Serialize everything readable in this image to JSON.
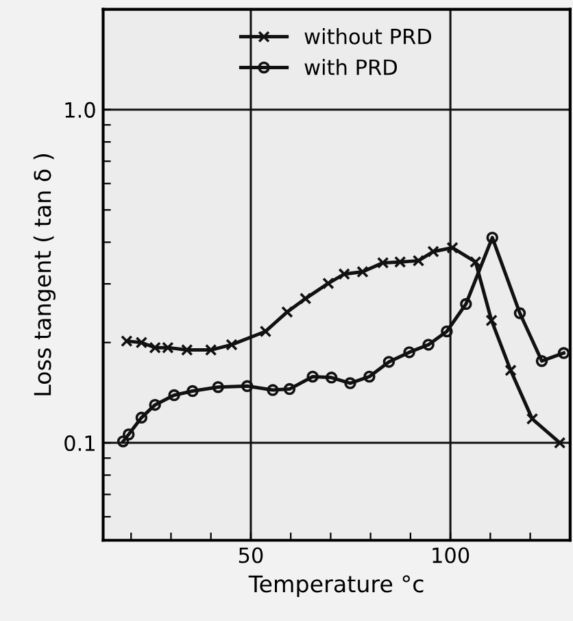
{
  "chart_data": {
    "type": "line",
    "xlabel": "Temperature °c",
    "ylabel": "Loss tangent ( tan δ )",
    "log": "y",
    "xlim": [
      13,
      130
    ],
    "ylim": [
      0.051,
      2.0
    ],
    "xticks": [
      {
        "value": 20,
        "label": null
      },
      {
        "value": 30,
        "label": null
      },
      {
        "value": 40,
        "label": null
      },
      50,
      {
        "value": 60,
        "label": null
      },
      {
        "value": 70,
        "label": null
      },
      {
        "value": 80,
        "label": null
      },
      {
        "value": 90,
        "label": null
      },
      100,
      {
        "value": 110,
        "label": null
      },
      {
        "value": 120,
        "label": null
      }
    ],
    "yticks": [
      {
        "value": 0.06,
        "label": null
      },
      {
        "value": 0.07,
        "label": null
      },
      {
        "value": 0.08,
        "label": null
      },
      {
        "value": 0.09,
        "label": null
      },
      0.1,
      {
        "value": 0.2,
        "label": null
      },
      {
        "value": 0.3,
        "label": null
      },
      {
        "value": 0.4,
        "label": null
      },
      {
        "value": 0.5,
        "label": null
      },
      {
        "value": 0.6,
        "label": null
      },
      {
        "value": 0.7,
        "label": null
      },
      {
        "value": 0.8,
        "label": null
      },
      {
        "value": 0.9,
        "label": null
      },
      {
        "value": 1.0,
        "label": "1.0"
      }
    ],
    "grid": true,
    "legend": "top",
    "line_style": "solid",
    "series": [
      {
        "name": "without PRD",
        "color": "#111111",
        "marker": "cross",
        "x": [
          18.9,
          22.6,
          26.0,
          29.2,
          34.0,
          40.0,
          45.2,
          53.7,
          59.1,
          63.7,
          69.4,
          73.4,
          78.0,
          83.1,
          87.4,
          92.0,
          95.7,
          100.5,
          106.3,
          110.3,
          115.1,
          120.5,
          127.4
        ],
        "values": [
          0.202,
          0.2,
          0.193,
          0.193,
          0.19,
          0.19,
          0.197,
          0.216,
          0.247,
          0.271,
          0.301,
          0.321,
          0.326,
          0.347,
          0.349,
          0.352,
          0.375,
          0.385,
          0.349,
          0.233,
          0.165,
          0.118,
          0.1
        ]
      },
      {
        "name": "with PRD",
        "color": "#111111",
        "marker": "circle",
        "x": [
          18.0,
          19.4,
          22.6,
          26.0,
          30.8,
          35.4,
          41.8,
          49.1,
          55.5,
          59.7,
          65.5,
          70.2,
          74.9,
          79.7,
          84.6,
          89.7,
          94.5,
          99.1,
          103.9,
          110.5,
          117.4,
          122.9,
          128.4
        ],
        "values": [
          0.101,
          0.106,
          0.119,
          0.13,
          0.139,
          0.143,
          0.147,
          0.148,
          0.144,
          0.145,
          0.158,
          0.157,
          0.151,
          0.158,
          0.175,
          0.187,
          0.197,
          0.216,
          0.261,
          0.413,
          0.245,
          0.176,
          0.186
        ]
      }
    ]
  }
}
